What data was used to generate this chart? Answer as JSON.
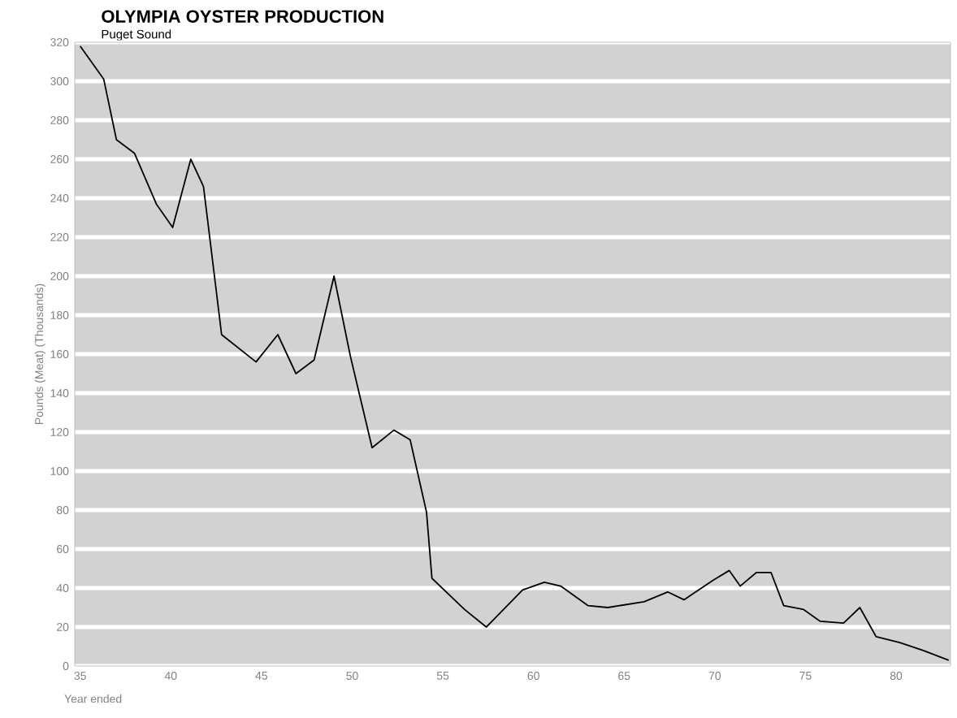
{
  "chart_data": {
    "type": "line",
    "title": "OLYMPIA OYSTER PRODUCTION",
    "subtitle": "Puget Sound",
    "ylabel": "Pounds (Meat) (Thousands)",
    "xlabel": "Year ended",
    "x": [
      35.0,
      36.3,
      37.0,
      38.0,
      39.2,
      40.1,
      41.1,
      41.8,
      42.8,
      44.7,
      45.9,
      46.9,
      47.9,
      49.0,
      49.9,
      51.1,
      52.3,
      53.2,
      54.1,
      54.4,
      56.2,
      57.4,
      59.4,
      60.6,
      61.5,
      63.0,
      64.1,
      66.1,
      67.4,
      68.3,
      69.9,
      70.8,
      71.4,
      72.3,
      73.1,
      73.8,
      74.9,
      75.8,
      77.1,
      78.0,
      78.9,
      80.2,
      81.5,
      82.9
    ],
    "values": [
      318,
      301,
      270,
      263,
      237,
      225,
      260,
      246,
      170,
      156,
      170,
      150,
      157,
      200,
      159,
      112,
      121,
      116,
      79,
      45,
      29,
      20,
      39,
      43,
      41,
      31,
      30,
      33,
      38,
      34,
      44,
      49,
      41,
      48,
      48,
      31,
      29,
      23,
      22,
      30,
      15,
      12,
      8,
      3
    ],
    "color": "#000000",
    "xlim": [
      34.7,
      83
    ],
    "ylim": [
      0,
      320
    ],
    "xticks": [
      35,
      40,
      45,
      50,
      55,
      60,
      65,
      70,
      75,
      80
    ],
    "yticks": [
      0,
      20,
      40,
      60,
      80,
      100,
      120,
      140,
      160,
      180,
      200,
      220,
      240,
      260,
      280,
      300,
      320
    ],
    "grid": "y",
    "marker": "none",
    "line_style": "solid"
  }
}
